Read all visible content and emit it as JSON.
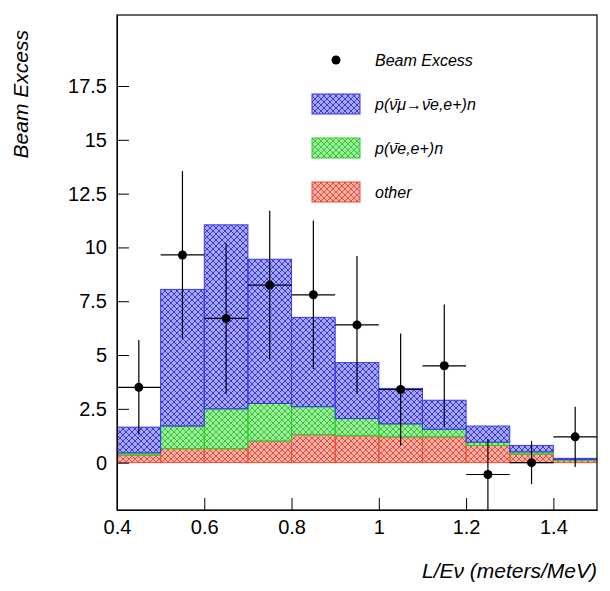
{
  "chart_data": {
    "type": "histogram",
    "x_label": "L/Eν (meters/MeV)",
    "y_label": "Beam Excess",
    "bins": [
      0.4,
      0.5,
      0.6,
      0.7,
      0.8,
      0.9,
      1.0,
      1.1,
      1.2,
      1.3,
      1.4,
      1.5
    ],
    "xlim": [
      0.4,
      1.5
    ],
    "xticks": [
      0.4,
      0.6,
      0.8,
      1,
      1.2,
      1.4
    ],
    "ylim": [
      -2.2,
      20.8
    ],
    "yticks": [
      0,
      2.5,
      5,
      7.5,
      10,
      12.5,
      15,
      17.5
    ],
    "stacked": true,
    "legend": "upper right",
    "series": [
      {
        "name": "Beam Excess",
        "type": "scatter",
        "marker": "circle",
        "color": "#000000",
        "x": [
          0.45,
          0.55,
          0.65,
          0.75,
          0.85,
          0.95,
          1.05,
          1.15,
          1.25,
          1.35,
          1.45
        ],
        "values": [
          3.5,
          9.65,
          6.7,
          8.25,
          7.8,
          6.4,
          3.4,
          4.5,
          -0.55,
          0.0,
          1.2
        ],
        "yerr": [
          2.2,
          3.9,
          3.5,
          3.45,
          3.45,
          3.2,
          2.6,
          2.85,
          1.65,
          1.0,
          1.4
        ],
        "xerr": [
          0.05,
          0.05,
          0.05,
          0.05,
          0.05,
          0.05,
          0.05,
          0.05,
          0.05,
          0.05,
          0.05
        ]
      },
      {
        "name": "p(ν̄μ→ν̄e,e+)n",
        "type": "bar",
        "color": "#3a3ae0",
        "values": [
          1.2,
          6.35,
          8.55,
          6.7,
          4.15,
          2.6,
          1.65,
          1.35,
          0.75,
          0.3,
          0.05
        ]
      },
      {
        "name": "p(ν̄e,e+)n",
        "type": "bar",
        "color": "#2ecc2e",
        "values": [
          0.1,
          1.05,
          1.85,
          1.75,
          1.3,
          0.8,
          0.6,
          0.35,
          0.15,
          0.1,
          0.05
        ]
      },
      {
        "name": "other",
        "type": "bar",
        "color": "#e8503a",
        "values": [
          0.35,
          0.65,
          0.65,
          1.0,
          1.3,
          1.25,
          1.2,
          1.2,
          0.8,
          0.4,
          0.1
        ]
      }
    ]
  }
}
